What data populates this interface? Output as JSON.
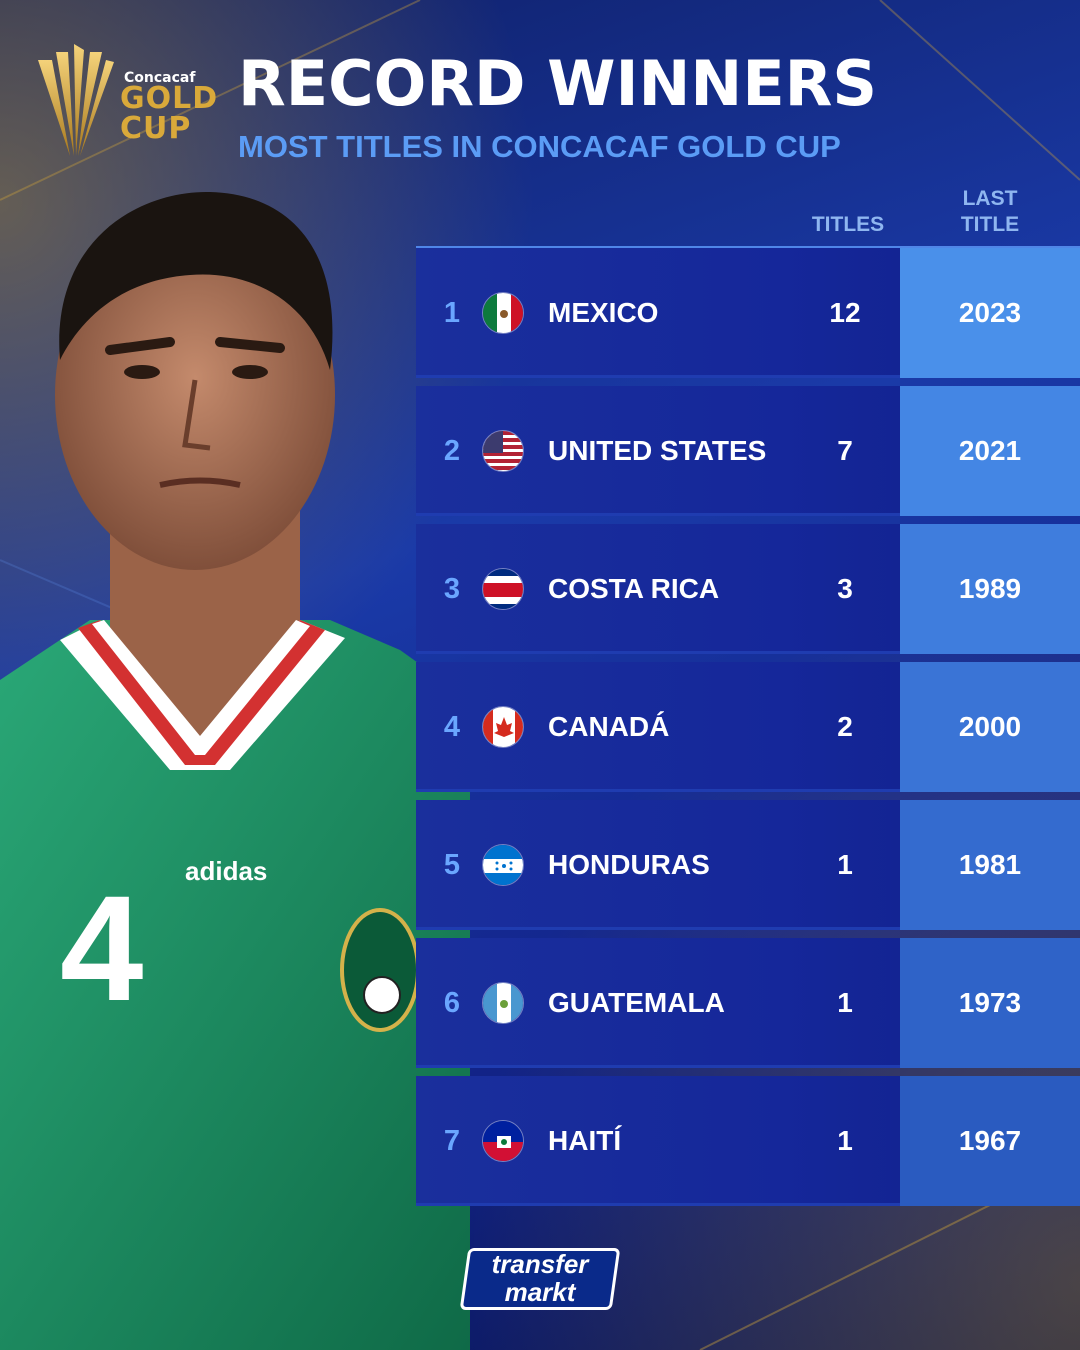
{
  "header": {
    "logo_small": "Concacaf",
    "logo_gold": "GOLD",
    "logo_cup": "CUP",
    "title": "RECORD WINNERS",
    "subtitle": "MOST TITLES IN CONCACAF GOLD CUP"
  },
  "columns": {
    "titles": "TITLES",
    "last_title": "LAST TITLE"
  },
  "rows": [
    {
      "rank": "1",
      "country": "MEXICO",
      "flag": "mexico-flag-icon",
      "titles": "12",
      "last": "2023"
    },
    {
      "rank": "2",
      "country": "UNITED STATES",
      "flag": "usa-flag-icon",
      "titles": "7",
      "last": "2021"
    },
    {
      "rank": "3",
      "country": "COSTA RICA",
      "flag": "costa-rica-flag-icon",
      "titles": "3",
      "last": "1989"
    },
    {
      "rank": "4",
      "country": "CANADÁ",
      "flag": "canada-flag-icon",
      "titles": "2",
      "last": "2000"
    },
    {
      "rank": "5",
      "country": "HONDURAS",
      "flag": "honduras-flag-icon",
      "titles": "1",
      "last": "1981"
    },
    {
      "rank": "6",
      "country": "GUATEMALA",
      "flag": "guatemala-flag-icon",
      "titles": "1",
      "last": "1973"
    },
    {
      "rank": "7",
      "country": "HAITÍ",
      "flag": "haiti-flag-icon",
      "titles": "1",
      "last": "1967"
    }
  ],
  "player": {
    "shirt_number": "4",
    "shirt_brand": "adidas"
  },
  "brand": {
    "line1": "transfer",
    "line2": "markt"
  },
  "colors": {
    "background": "#12248a",
    "accent_gold": "#d9a93a",
    "subtitle_blue": "#5b9cf5",
    "rank_blue": "#6aa6ff",
    "last_title_col": "#4a90ea"
  }
}
